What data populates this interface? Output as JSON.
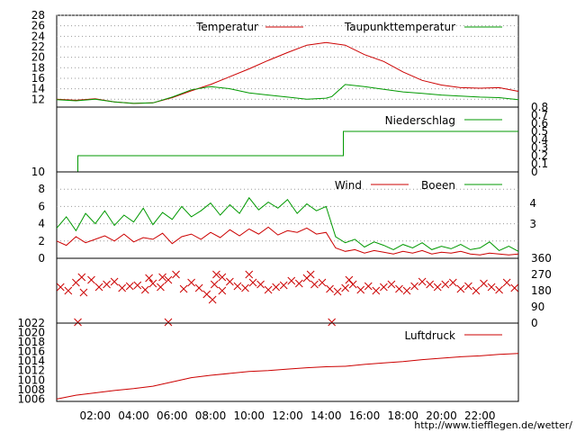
{
  "chart_data": [
    {
      "type": "line",
      "yticks": [
        12,
        14,
        16,
        18,
        20,
        22,
        24,
        26,
        28
      ],
      "ylim": [
        10.5,
        28
      ],
      "series": [
        {
          "name": "Temperatur",
          "color": "#cc0000",
          "x": [
            0,
            1,
            2,
            3,
            4,
            5,
            6,
            7,
            8,
            9,
            10,
            11,
            12,
            13,
            14,
            15,
            16,
            17,
            18,
            19,
            20,
            21,
            22,
            23,
            24
          ],
          "values": [
            12.0,
            11.8,
            12.1,
            11.5,
            11.2,
            11.3,
            12.3,
            13.6,
            14.8,
            16.3,
            17.8,
            19.4,
            20.9,
            22.3,
            22.8,
            22.3,
            20.5,
            19.2,
            17.2,
            15.6,
            14.7,
            14.2,
            14.1,
            14.2,
            13.5
          ]
        },
        {
          "name": "Taupunkttemperatur",
          "color": "#009900",
          "x": [
            0,
            1,
            2,
            3,
            4,
            5,
            6,
            7,
            8,
            9,
            10,
            11,
            12,
            13,
            14,
            14.3,
            15,
            16,
            17,
            18,
            19,
            20,
            21,
            22,
            23,
            24
          ],
          "values": [
            11.9,
            11.7,
            12.0,
            11.5,
            11.2,
            11.3,
            12.4,
            13.8,
            14.4,
            14.0,
            13.2,
            12.8,
            12.4,
            12.0,
            12.2,
            12.5,
            14.8,
            14.4,
            13.9,
            13.4,
            13.1,
            12.8,
            12.6,
            12.4,
            12.3,
            11.9
          ]
        }
      ]
    },
    {
      "type": "line",
      "yticks": [
        "0",
        "0.1",
        "0.2",
        "0.3",
        "0.4",
        "0.5",
        "0.6",
        "0.7",
        "0.8"
      ],
      "ylim": [
        0,
        0.8
      ],
      "series": [
        {
          "name": "Niederschlag",
          "color": "#009900",
          "x": [
            0,
            1.1,
            1.1,
            14.9,
            14.9,
            24
          ],
          "values": [
            0,
            0,
            0.2,
            0.2,
            0.5,
            0.5
          ]
        }
      ]
    },
    {
      "type": "line",
      "yticks_left": [
        0,
        2,
        4,
        6,
        8,
        10
      ],
      "yticks_right": [
        "3",
        "4"
      ],
      "ylim": [
        0,
        10
      ],
      "series": [
        {
          "name": "Wind",
          "color": "#cc0000",
          "x": [
            0,
            0.5,
            1,
            1.5,
            2,
            2.5,
            3,
            3.5,
            4,
            4.5,
            5,
            5.5,
            6,
            6.5,
            7,
            7.5,
            8,
            8.5,
            9,
            9.5,
            10,
            10.5,
            11,
            11.5,
            12,
            12.5,
            13,
            13.5,
            14,
            14.5,
            15,
            15.5,
            16,
            16.5,
            17,
            17.5,
            18,
            18.5,
            19,
            19.5,
            20,
            20.5,
            21,
            21.5,
            22,
            22.5,
            23,
            23.5,
            24
          ],
          "values": [
            2.0,
            1.5,
            2.5,
            1.8,
            2.2,
            2.6,
            2.0,
            2.8,
            1.9,
            2.4,
            2.2,
            2.9,
            1.7,
            2.5,
            2.8,
            2.2,
            3.0,
            2.4,
            3.3,
            2.6,
            3.4,
            2.8,
            3.6,
            2.7,
            3.2,
            3.0,
            3.5,
            2.8,
            3.0,
            1.2,
            0.8,
            1.0,
            0.6,
            0.9,
            0.7,
            0.5,
            0.8,
            0.6,
            0.9,
            0.5,
            0.7,
            0.6,
            0.8,
            0.5,
            0.4,
            0.6,
            0.5,
            0.4,
            0.5
          ]
        },
        {
          "name": "Boeen",
          "color": "#009900",
          "x": [
            0,
            0.5,
            1,
            1.5,
            2,
            2.5,
            3,
            3.5,
            4,
            4.5,
            5,
            5.5,
            6,
            6.5,
            7,
            7.5,
            8,
            8.5,
            9,
            9.5,
            10,
            10.5,
            11,
            11.5,
            12,
            12.5,
            13,
            13.5,
            14,
            14.5,
            15,
            15.5,
            16,
            16.5,
            17,
            17.5,
            18,
            18.5,
            19,
            19.5,
            20,
            20.5,
            21,
            21.5,
            22,
            22.5,
            23,
            23.5,
            24
          ],
          "values": [
            3.5,
            4.8,
            3.2,
            5.2,
            4.0,
            5.5,
            3.8,
            5.0,
            4.2,
            5.8,
            3.9,
            5.3,
            4.5,
            6.0,
            4.8,
            5.5,
            6.4,
            5.0,
            6.2,
            5.2,
            7.0,
            5.6,
            6.5,
            5.8,
            6.8,
            5.2,
            6.3,
            5.5,
            6.0,
            2.5,
            1.8,
            2.2,
            1.3,
            1.9,
            1.5,
            1.0,
            1.6,
            1.2,
            1.8,
            1.0,
            1.4,
            1.1,
            1.6,
            1.0,
            1.2,
            1.9,
            0.9,
            1.4,
            0.8
          ]
        }
      ]
    },
    {
      "type": "scatter",
      "yticks": [
        0,
        90,
        180,
        270,
        360
      ],
      "ylim": [
        0,
        360
      ],
      "series": [
        {
          "name": "",
          "color": "#cc0000",
          "x": [
            0.2,
            0.6,
            1.0,
            1.4,
            1.8,
            2.2,
            2.6,
            3.0,
            3.4,
            3.8,
            4.2,
            4.6,
            5.0,
            5.4,
            5.8,
            6.2,
            6.6,
            7.0,
            7.4,
            7.8,
            8.2,
            8.6,
            9.0,
            9.4,
            9.8,
            10.2,
            10.6,
            11.0,
            11.4,
            11.8,
            12.2,
            12.6,
            13.0,
            13.4,
            13.8,
            14.2,
            14.6,
            15.0,
            15.4,
            15.8,
            16.2,
            16.6,
            17.0,
            17.4,
            17.8,
            18.2,
            18.6,
            19.0,
            19.4,
            19.8,
            20.2,
            20.6,
            21.0,
            21.4,
            21.8,
            22.2,
            22.6,
            23.0,
            23.4,
            23.8,
            1.1,
            5.8,
            14.3,
            1.3,
            5.5,
            8.3,
            8.6,
            10.0,
            13.2,
            15.2,
            8.1,
            4.8
          ],
          "values": [
            200,
            180,
            225,
            170,
            240,
            200,
            215,
            230,
            195,
            205,
            210,
            185,
            220,
            200,
            240,
            270,
            190,
            225,
            195,
            160,
            215,
            180,
            230,
            205,
            195,
            225,
            215,
            185,
            200,
            210,
            235,
            220,
            250,
            215,
            225,
            190,
            175,
            195,
            215,
            185,
            205,
            180,
            200,
            215,
            190,
            180,
            205,
            230,
            215,
            200,
            215,
            225,
            190,
            205,
            180,
            220,
            200,
            185,
            225,
            195,
            5,
            5,
            5,
            255,
            255,
            270,
            255,
            270,
            270,
            240,
            130,
            250
          ]
        }
      ]
    },
    {
      "type": "line",
      "yticks": [
        1006,
        1008,
        1010,
        1012,
        1014,
        1016,
        1018,
        1020,
        1022
      ],
      "ylim": [
        1005.5,
        1022
      ],
      "series": [
        {
          "name": "Luftdruck",
          "color": "#cc0000",
          "x": [
            0,
            1,
            2,
            3,
            4,
            5,
            6,
            7,
            8,
            9,
            10,
            11,
            12,
            13,
            14,
            15,
            16,
            17,
            18,
            19,
            20,
            21,
            22,
            23,
            24
          ],
          "values": [
            1006.0,
            1006.8,
            1007.3,
            1007.8,
            1008.2,
            1008.7,
            1009.6,
            1010.5,
            1011.0,
            1011.4,
            1011.8,
            1012.0,
            1012.3,
            1012.6,
            1012.8,
            1012.9,
            1013.3,
            1013.6,
            1013.9,
            1014.3,
            1014.6,
            1014.9,
            1015.1,
            1015.4,
            1015.6
          ]
        }
      ]
    }
  ],
  "xaxis": {
    "labels": [
      "02:00",
      "04:00",
      "06:00",
      "08:00",
      "10:00",
      "12:00",
      "14:00",
      "16:00",
      "18:00",
      "20:00",
      "22:00"
    ],
    "positions": [
      2,
      4,
      6,
      8,
      10,
      12,
      14,
      16,
      18,
      20,
      22
    ],
    "xlim": [
      0,
      24
    ]
  },
  "credit": "http://www.tiefflegen.de/wetter/"
}
